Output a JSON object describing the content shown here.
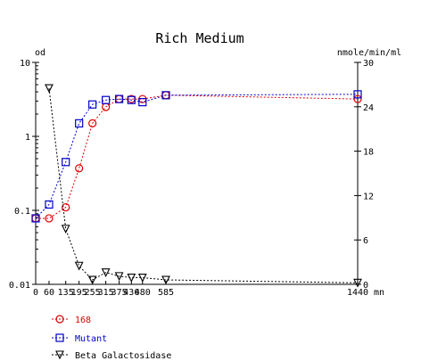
{
  "chart_data": {
    "type": "line",
    "title": "Rich Medium",
    "left_axis": {
      "label": "od",
      "scale": "log",
      "range": [
        0.01,
        10
      ],
      "ticks": [
        {
          "value": 10,
          "label": "10"
        },
        {
          "value": 1,
          "label": "1"
        },
        {
          "value": 0.1,
          "label": "0.1"
        },
        {
          "value": 0.01,
          "label": "0.01"
        }
      ]
    },
    "right_axis": {
      "label": "nmole/min/ml",
      "scale": "linear",
      "range": [
        0,
        30
      ],
      "ticks": [
        {
          "value": 30,
          "label": "30"
        },
        {
          "value": 24,
          "label": "24"
        },
        {
          "value": 18,
          "label": "18"
        },
        {
          "value": 12,
          "label": "12"
        },
        {
          "value": 6,
          "label": "6"
        },
        {
          "value": 0,
          "label": "0"
        }
      ]
    },
    "x_axis": {
      "unit": "mn",
      "range": [
        0,
        1440
      ],
      "break_after": 585,
      "ticks": [
        {
          "value": 0,
          "label": "0"
        },
        {
          "value": 60,
          "label": "60"
        },
        {
          "value": 135,
          "label": "135"
        },
        {
          "value": 195,
          "label": "195"
        },
        {
          "value": 255,
          "label": "255"
        },
        {
          "value": 315,
          "label": "315"
        },
        {
          "value": 375,
          "label": "375"
        },
        {
          "value": 430,
          "label": "430"
        },
        {
          "value": 480,
          "label": "480"
        },
        {
          "value": 585,
          "label": "585"
        },
        {
          "value": 1440,
          "label": "1440"
        }
      ]
    },
    "series": [
      {
        "name": "168",
        "axis": "left",
        "marker": "circle",
        "color": "#dd0000",
        "points": [
          [
            0,
            0.078
          ],
          [
            60,
            0.078
          ],
          [
            135,
            0.11
          ],
          [
            195,
            0.37
          ],
          [
            255,
            1.5
          ],
          [
            315,
            2.5
          ],
          [
            375,
            3.2
          ],
          [
            430,
            3.2
          ],
          [
            480,
            3.2
          ],
          [
            585,
            3.6
          ],
          [
            1440,
            3.2
          ]
        ]
      },
      {
        "name": "Mutant",
        "axis": "left",
        "marker": "square",
        "color": "#0000cc",
        "points": [
          [
            0,
            0.078
          ],
          [
            60,
            0.12
          ],
          [
            135,
            0.45
          ],
          [
            195,
            1.5
          ],
          [
            255,
            2.7
          ],
          [
            315,
            3.1
          ],
          [
            375,
            3.2
          ],
          [
            430,
            3.1
          ],
          [
            480,
            2.9
          ],
          [
            585,
            3.6
          ],
          [
            1440,
            3.7
          ]
        ]
      },
      {
        "name": "Beta Galactosidase",
        "axis": "right",
        "marker": "triangle-down",
        "color": "#000000",
        "points": [
          [
            60,
            26.5
          ],
          [
            135,
            7.5
          ],
          [
            195,
            2.5
          ],
          [
            255,
            0.6
          ],
          [
            315,
            1.6
          ],
          [
            375,
            1.1
          ],
          [
            430,
            0.9
          ],
          [
            480,
            0.9
          ],
          [
            585,
            0.6
          ],
          [
            1440,
            0.2
          ]
        ]
      }
    ]
  }
}
